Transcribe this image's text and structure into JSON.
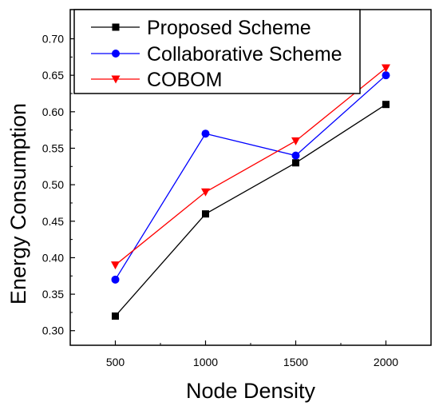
{
  "chart_data": {
    "type": "line",
    "xlabel": "Node Density",
    "ylabel": "Energy Consumption",
    "x": [
      500,
      1000,
      1500,
      2000
    ],
    "xlim": [
      250,
      2250
    ],
    "ylim": [
      0.28,
      0.74
    ],
    "x_ticks": [
      500,
      1000,
      1500,
      2000
    ],
    "y_ticks": [
      0.3,
      0.35,
      0.4,
      0.45,
      0.5,
      0.55,
      0.6,
      0.65,
      0.7
    ],
    "grid": false,
    "legend_position": "top-left",
    "series": [
      {
        "name": "Proposed Scheme",
        "color": "#000000",
        "marker": "square",
        "values": [
          0.32,
          0.46,
          0.53,
          0.61
        ]
      },
      {
        "name": "Collaborative Scheme",
        "color": "#0000ff",
        "marker": "circle",
        "values": [
          0.37,
          0.57,
          0.54,
          0.65
        ]
      },
      {
        "name": "COBOM",
        "color": "#ff0000",
        "marker": "triangle-down",
        "values": [
          0.39,
          0.49,
          0.56,
          0.66
        ]
      }
    ]
  }
}
